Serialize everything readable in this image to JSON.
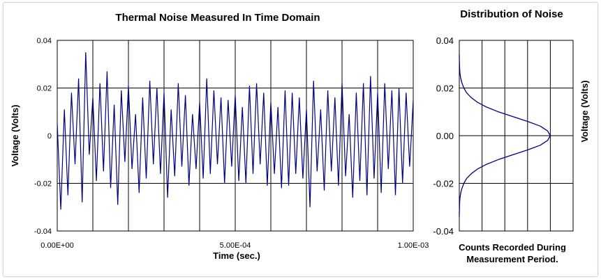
{
  "chart_data": [
    {
      "type": "line",
      "title": "Thermal Noise Measured In Time Domain",
      "xlabel": "Time (sec.)",
      "ylabel": "Voltage (Volts)",
      "xlim": [
        0,
        0.001
      ],
      "ylim": [
        -0.04,
        0.04
      ],
      "x_tick_labels": [
        "0.00E+00",
        "5.00E-04",
        "1.00E-03"
      ],
      "y_tick_labels": [
        "0.04",
        "0.02",
        "0",
        "-0.02",
        "-0.04"
      ],
      "grid": "vertical every 1.00E-04, horizontal every 0.02",
      "series": [
        {
          "color": "#000080",
          "x": [
            0.0,
            1e-05,
            2e-05,
            3e-05,
            4e-05,
            5e-05,
            6e-05,
            7e-05,
            8e-05,
            9e-05,
            0.0001,
            0.00011,
            0.00012,
            0.00013,
            0.00014,
            0.00015,
            0.00016,
            0.00017,
            0.00018,
            0.00019,
            0.0002,
            0.00021,
            0.00022,
            0.00023,
            0.00024,
            0.00025,
            0.00026,
            0.00027,
            0.00028,
            0.00029,
            0.0003,
            0.00031,
            0.00032,
            0.00033,
            0.00034,
            0.00035,
            0.00036,
            0.00037,
            0.00038,
            0.00039,
            0.0004,
            0.00041,
            0.00042,
            0.00043,
            0.00044,
            0.00045,
            0.00046,
            0.00047,
            0.00048,
            0.00049,
            0.0005,
            0.00051,
            0.00052,
            0.00053,
            0.00054,
            0.00055,
            0.00056,
            0.00057,
            0.00058,
            0.00059,
            0.0006,
            0.00061,
            0.00062,
            0.00063,
            0.00064,
            0.00065,
            0.00066,
            0.00067,
            0.00068,
            0.00069,
            0.0007,
            0.00071,
            0.00072,
            0.00073,
            0.00074,
            0.00075,
            0.00076,
            0.00077,
            0.00078,
            0.00079,
            0.0008,
            0.00081,
            0.00082,
            0.00083,
            0.00084,
            0.00085,
            0.00086,
            0.00087,
            0.00088,
            0.00089,
            0.0009,
            0.00091,
            0.00092,
            0.00093,
            0.00094,
            0.00095,
            0.00096,
            0.00097,
            0.00098,
            0.00099,
            0.001
          ],
          "y": [
            0.005,
            -0.031,
            0.011,
            -0.025,
            0.018,
            -0.012,
            0.024,
            -0.028,
            0.035,
            -0.008,
            0.016,
            -0.019,
            0.022,
            -0.015,
            0.027,
            -0.022,
            0.013,
            -0.029,
            0.019,
            -0.011,
            0.021,
            -0.014,
            0.009,
            -0.024,
            0.016,
            -0.018,
            0.023,
            -0.012,
            0.02,
            -0.016,
            0.018,
            -0.026,
            0.011,
            -0.017,
            0.022,
            -0.013,
            0.017,
            -0.021,
            0.009,
            -0.014,
            0.014,
            -0.018,
            0.024,
            -0.016,
            0.019,
            -0.012,
            0.016,
            -0.02,
            0.015,
            -0.013,
            0.017,
            -0.019,
            0.012,
            -0.02,
            0.021,
            -0.016,
            0.022,
            -0.012,
            0.018,
            -0.021,
            0.014,
            -0.016,
            0.012,
            -0.022,
            0.019,
            -0.021,
            0.018,
            -0.016,
            0.016,
            -0.018,
            0.011,
            -0.03,
            0.023,
            -0.015,
            0.011,
            -0.023,
            0.019,
            -0.015,
            0.016,
            -0.021,
            0.022,
            -0.017,
            0.009,
            -0.026,
            0.018,
            -0.019,
            0.022,
            -0.025,
            0.025,
            -0.018,
            0.018,
            -0.024,
            0.022,
            -0.014,
            0.019,
            -0.025,
            0.02,
            -0.02,
            0.018,
            -0.013,
            0.015
          ]
        }
      ]
    },
    {
      "type": "line",
      "title": "Distribution of Noise",
      "xlabel": "Counts Recorded During Measurement Period.",
      "ylabel": "Voltage (Volts)",
      "ylim": [
        -0.04,
        0.04
      ],
      "xlim": [
        0,
        1.25
      ],
      "y_tick_labels": [
        "0.04",
        "0.02",
        "0.00",
        "-0.02",
        "-0.04"
      ],
      "grid": "vertical lines, horizontal every 0.02",
      "series": [
        {
          "color": "#000080",
          "y": [
            0.034,
            0.032,
            0.03,
            0.028,
            0.026,
            0.024,
            0.022,
            0.02,
            0.018,
            0.016,
            0.014,
            0.012,
            0.01,
            0.008,
            0.006,
            0.004,
            0.002,
            0.0,
            -0.002,
            -0.004,
            -0.006,
            -0.008,
            -0.01,
            -0.012,
            -0.014,
            -0.016,
            -0.018,
            -0.02,
            -0.022,
            -0.024,
            -0.026,
            -0.028,
            -0.03,
            -0.032,
            -0.034
          ],
          "x": [
            0.0,
            0.001,
            0.002,
            0.004,
            0.008,
            0.016,
            0.03,
            0.05,
            0.08,
            0.13,
            0.2,
            0.3,
            0.43,
            0.59,
            0.75,
            0.89,
            0.97,
            1.0,
            0.97,
            0.89,
            0.75,
            0.59,
            0.43,
            0.3,
            0.2,
            0.13,
            0.08,
            0.05,
            0.03,
            0.016,
            0.008,
            0.004,
            0.002,
            0.001,
            0.0
          ]
        }
      ]
    }
  ]
}
